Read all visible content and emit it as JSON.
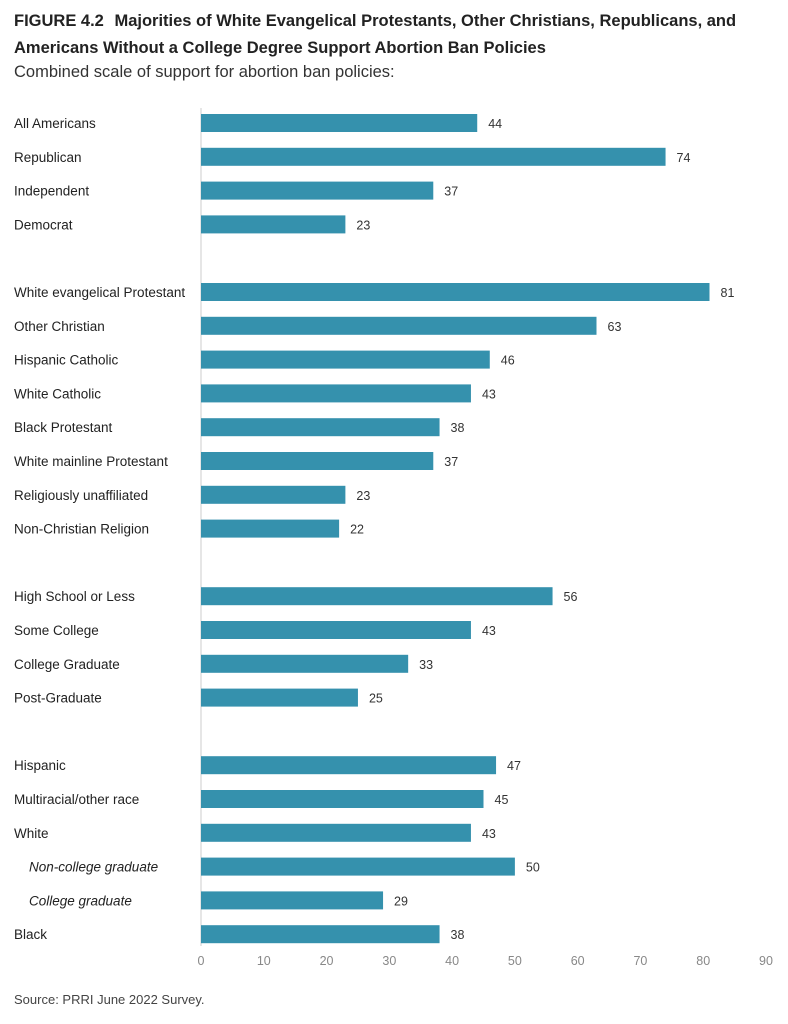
{
  "figure": {
    "number": "FIGURE 4.2",
    "title": "Majorities of White Evangelical Protestants, Other Christians, Republicans, and Americans Without a College Degree Support Abortion Ban Policies",
    "subtitle": "Combined scale of support for abortion ban policies:",
    "source": "Source: PRRI June 2022 Survey."
  },
  "chart_data": {
    "type": "bar",
    "orientation": "horizontal",
    "bar_color": "#3591AD",
    "xlim": [
      0,
      90
    ],
    "xticks": [
      0,
      10,
      20,
      30,
      40,
      50,
      60,
      70,
      80,
      90
    ],
    "groups": [
      {
        "items": [
          {
            "label": "All Americans",
            "value": 44
          },
          {
            "label": "Republican",
            "value": 74
          },
          {
            "label": "Independent",
            "value": 37
          },
          {
            "label": "Democrat",
            "value": 23
          }
        ]
      },
      {
        "items": [
          {
            "label": "White evangelical Protestant",
            "value": 81
          },
          {
            "label": "Other Christian",
            "value": 63
          },
          {
            "label": "Hispanic Catholic",
            "value": 46
          },
          {
            "label": "White Catholic",
            "value": 43
          },
          {
            "label": "Black Protestant",
            "value": 38
          },
          {
            "label": "White mainline Protestant",
            "value": 37
          },
          {
            "label": "Religiously unaffiliated",
            "value": 23
          },
          {
            "label": "Non-Christian Religion",
            "value": 22
          }
        ]
      },
      {
        "items": [
          {
            "label": "High School or Less",
            "value": 56
          },
          {
            "label": "Some College",
            "value": 43
          },
          {
            "label": "College Graduate",
            "value": 33
          },
          {
            "label": "Post-Graduate",
            "value": 25
          }
        ]
      },
      {
        "items": [
          {
            "label": "Hispanic",
            "value": 47
          },
          {
            "label": "Multiracial/other race",
            "value": 45
          },
          {
            "label": "White",
            "value": 43
          },
          {
            "label": "Non-college graduate",
            "value": 50,
            "sub": true
          },
          {
            "label": "College graduate",
            "value": 29,
            "sub": true
          },
          {
            "label": "Black",
            "value": 38
          }
        ]
      }
    ]
  }
}
